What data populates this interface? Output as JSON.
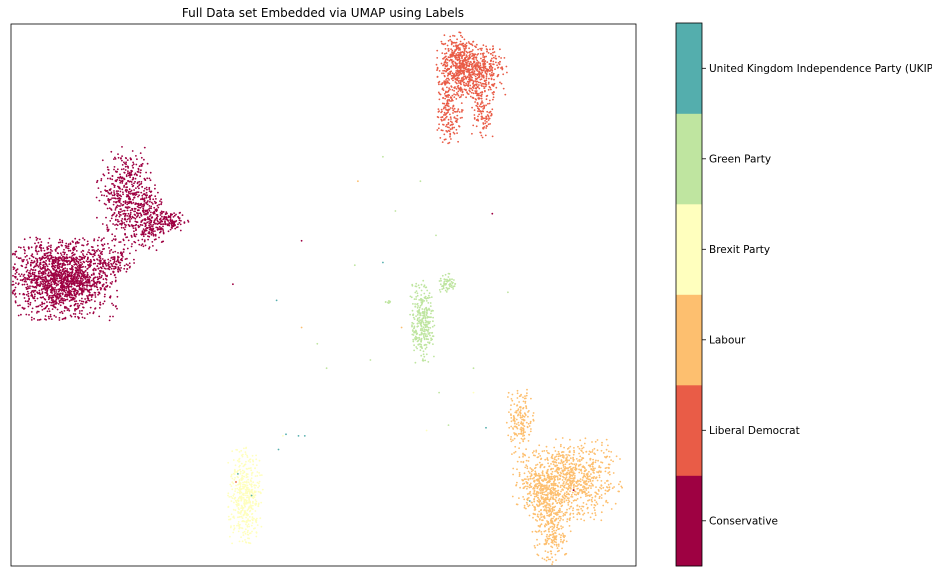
{
  "chart_data": {
    "type": "scatter",
    "title": "Full Data set Embedded via UMAP using Labels",
    "xlabel": "",
    "ylabel": "",
    "axes_ticks": "hidden",
    "grid": false,
    "legend": "colorbar-right",
    "categories": [
      {
        "name": "Conservative",
        "color": "#9e0142"
      },
      {
        "name": "Liberal Democrat",
        "color": "#e95c47"
      },
      {
        "name": "Labour",
        "color": "#fdbf6f"
      },
      {
        "name": "Brexit Party",
        "color": "#ffffbe"
      },
      {
        "name": "Green Party",
        "color": "#bfe5a0"
      },
      {
        "name": "United Kingdom Independence Party (UKIP)",
        "color": "#54aead"
      }
    ],
    "xlim": [
      0,
      100
    ],
    "ylim": [
      0,
      100
    ],
    "clusters": [
      {
        "category": 0,
        "cx": 8,
        "cy": 53,
        "sx": 4.2,
        "sy": 3.5,
        "n": 1700
      },
      {
        "category": 0,
        "cx": 18.5,
        "cy": 68,
        "sx": 2.2,
        "sy": 4.5,
        "n": 500
      },
      {
        "category": 0,
        "cx": 22,
        "cy": 64,
        "sx": 1.4,
        "sy": 2.5,
        "n": 250
      },
      {
        "category": 0,
        "cx": 16.5,
        "cy": 56,
        "sx": 1.5,
        "sy": 1.3,
        "n": 120
      },
      {
        "category": 0,
        "cx": 25.5,
        "cy": 63.5,
        "sx": 1.4,
        "sy": 1.0,
        "n": 120
      },
      {
        "category": 1,
        "cx": 73.7,
        "cy": 91.5,
        "sx": 2.6,
        "sy": 2.5,
        "n": 650
      },
      {
        "category": 1,
        "cx": 71.5,
        "cy": 93,
        "sx": 1.2,
        "sy": 2.5,
        "n": 200
      },
      {
        "category": 1,
        "cx": 70.2,
        "cy": 84,
        "sx": 1.0,
        "sy": 3.0,
        "n": 180
      },
      {
        "category": 1,
        "cx": 75.5,
        "cy": 84,
        "sx": 0.8,
        "sy": 2.5,
        "n": 120
      },
      {
        "category": 2,
        "cx": 89,
        "cy": 16,
        "sx": 4.0,
        "sy": 3.5,
        "n": 900
      },
      {
        "category": 2,
        "cx": 86.5,
        "cy": 8,
        "sx": 1.4,
        "sy": 3.5,
        "n": 300
      },
      {
        "category": 2,
        "cx": 81.5,
        "cy": 27,
        "sx": 1.0,
        "sy": 3.0,
        "n": 160
      },
      {
        "category": 2,
        "cx": 84.5,
        "cy": 14,
        "sx": 1.2,
        "sy": 2.0,
        "n": 150
      },
      {
        "category": 3,
        "cx": 37.5,
        "cy": 13,
        "sx": 1.3,
        "sy": 4.2,
        "n": 450
      },
      {
        "category": 4,
        "cx": 65.8,
        "cy": 45,
        "sx": 0.9,
        "sy": 3.5,
        "n": 300
      },
      {
        "category": 4,
        "cx": 69.8,
        "cy": 52,
        "sx": 0.6,
        "sy": 0.9,
        "n": 60
      },
      {
        "category": 4,
        "cx": 60.5,
        "cy": 48.7,
        "sx": 0.3,
        "sy": 0.2,
        "n": 8
      }
    ],
    "outliers": [
      {
        "category": 0,
        "x": 35.5,
        "y": 52
      },
      {
        "category": 0,
        "x": 46.5,
        "y": 60
      },
      {
        "category": 0,
        "x": 77,
        "y": 65
      },
      {
        "category": 0,
        "x": 90,
        "y": 14
      },
      {
        "category": 1,
        "x": 68.5,
        "y": 81.5
      },
      {
        "category": 1,
        "x": 36,
        "y": 15.5
      },
      {
        "category": 5,
        "x": 42.5,
        "y": 49
      },
      {
        "category": 5,
        "x": 46,
        "y": 24
      },
      {
        "category": 5,
        "x": 47,
        "y": 24
      },
      {
        "category": 5,
        "x": 44,
        "y": 24.3
      },
      {
        "category": 5,
        "x": 42.8,
        "y": 21.5
      },
      {
        "category": 5,
        "x": 38.5,
        "y": 13
      },
      {
        "category": 5,
        "x": 36.3,
        "y": 17
      },
      {
        "category": 5,
        "x": 76,
        "y": 25.5
      },
      {
        "category": 5,
        "x": 83,
        "y": 12
      },
      {
        "category": 5,
        "x": 59.5,
        "y": 56
      },
      {
        "category": 2,
        "x": 55.5,
        "y": 71
      },
      {
        "category": 2,
        "x": 46.5,
        "y": 44
      },
      {
        "category": 2,
        "x": 62.5,
        "y": 44
      },
      {
        "category": 4,
        "x": 59.5,
        "y": 75.5
      },
      {
        "category": 4,
        "x": 65.5,
        "y": 71
      },
      {
        "category": 4,
        "x": 61.5,
        "y": 65.5
      },
      {
        "category": 4,
        "x": 68,
        "y": 61
      },
      {
        "category": 4,
        "x": 79.5,
        "y": 50.5
      },
      {
        "category": 4,
        "x": 55,
        "y": 55.5
      },
      {
        "category": 4,
        "x": 57.5,
        "y": 38
      },
      {
        "category": 4,
        "x": 49,
        "y": 41
      },
      {
        "category": 4,
        "x": 50.5,
        "y": 36.5
      },
      {
        "category": 4,
        "x": 68.5,
        "y": 32
      },
      {
        "category": 4,
        "x": 74,
        "y": 36.5
      },
      {
        "category": 4,
        "x": 70,
        "y": 26
      },
      {
        "category": 3,
        "x": 66.5,
        "y": 25
      },
      {
        "category": 3,
        "x": 74,
        "y": 32
      },
      {
        "category": 3,
        "x": 43.5,
        "y": 24
      }
    ]
  }
}
